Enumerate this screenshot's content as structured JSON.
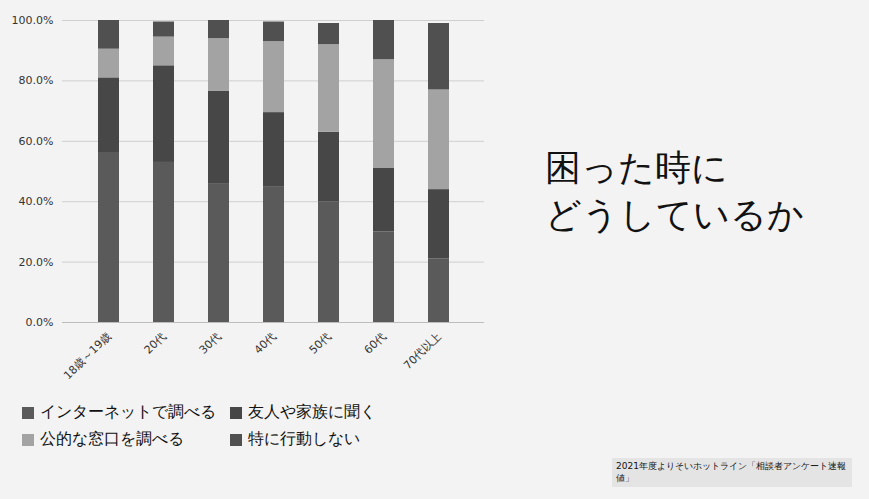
{
  "chart_data": {
    "type": "bar",
    "stacked": true,
    "title": "困った時に\nどうしているか",
    "source": "2021年度よりそいホットライン「相談者アンケート速報値」",
    "categories": [
      "18歳～19歳",
      "20代",
      "30代",
      "40代",
      "50代",
      "60代",
      "70代以上"
    ],
    "series": [
      {
        "name": "インターネットで調べる",
        "color": "#5a5a5a",
        "values": [
          56,
          53,
          46,
          45,
          40,
          30,
          21
        ]
      },
      {
        "name": "友人や家族に聞く",
        "color": "#474747",
        "values": [
          25,
          32,
          30.5,
          24.5,
          23,
          21,
          23
        ]
      },
      {
        "name": "公的な窓口を調べる",
        "color": "#a3a3a3",
        "values": [
          9.5,
          9.5,
          17.5,
          23.5,
          29,
          36,
          33
        ]
      },
      {
        "name": "特に行動しない",
        "color": "#505050",
        "values": [
          9.5,
          5,
          6,
          6.5,
          7,
          13,
          22
        ]
      }
    ],
    "ylim": [
      0,
      100
    ],
    "yticks": [
      {
        "value": 0,
        "label": "0.0%"
      },
      {
        "value": 20,
        "label": "20.0%"
      },
      {
        "value": 40,
        "label": "40.0%"
      },
      {
        "value": 60,
        "label": "60.0%"
      },
      {
        "value": 80,
        "label": "80.0%"
      },
      {
        "value": 100,
        "label": "100.0%"
      }
    ],
    "grid": true,
    "legend": "bottom"
  }
}
